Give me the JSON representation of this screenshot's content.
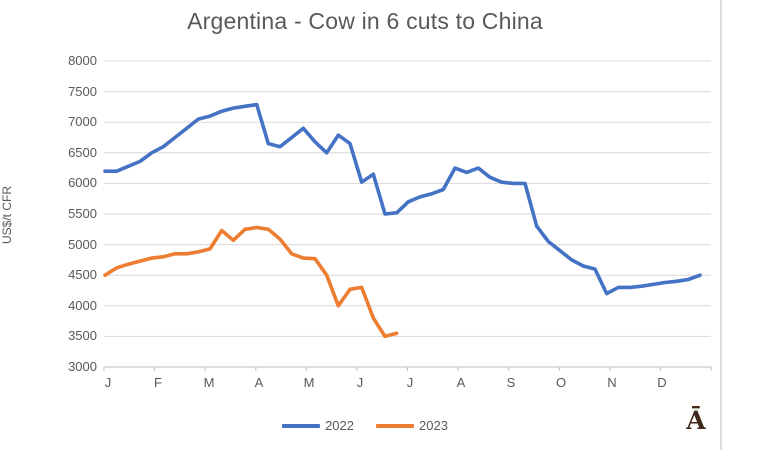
{
  "title": "Argentina - Cow in 6 cuts to China",
  "y_axis": {
    "title": "US$/t CFR",
    "min": 3000,
    "max": 8000,
    "step": 500
  },
  "x_axis": {
    "month_labels": [
      "J",
      "F",
      "M",
      "A",
      "M",
      "J",
      "J",
      "A",
      "S",
      "O",
      "N",
      "D"
    ]
  },
  "legend": [
    {
      "label": "2022",
      "color": "#4472C4"
    },
    {
      "label": "2023",
      "color": "#ED7D31"
    }
  ],
  "watermark": "Ā",
  "colors": {
    "series_2022": "#4472C4",
    "series_2023": "#ED7D31",
    "gridline": "#D9D9D9",
    "axis_line": "#BFBFBF",
    "text": "#595959",
    "watermark": "#40291A"
  },
  "chart_data": {
    "type": "line",
    "title": "Argentina - Cow in 6 cuts to China",
    "xlabel": "",
    "ylabel": "US$/t CFR",
    "ylim": [
      3000,
      8000
    ],
    "y_tick_step": 500,
    "grid": "horizontal",
    "legend_position": "bottom",
    "x_unit": "weekly points, Jan-Dec",
    "categories_months": [
      "J",
      "F",
      "M",
      "A",
      "M",
      "J",
      "J",
      "A",
      "S",
      "O",
      "N",
      "D"
    ],
    "series": [
      {
        "name": "2022",
        "color": "#4472C4",
        "values": [
          6200,
          6200,
          6280,
          6360,
          6500,
          6600,
          6750,
          6900,
          7050,
          7100,
          7180,
          7230,
          7260,
          7290,
          6650,
          6600,
          6750,
          6900,
          6680,
          6500,
          6790,
          6650,
          6020,
          6150,
          5500,
          5520,
          5700,
          5780,
          5830,
          5900,
          6250,
          6180,
          6250,
          6100,
          6020,
          6000,
          6000,
          5300,
          5050,
          4900,
          4750,
          4650,
          4600,
          4200,
          4300,
          4300,
          4320,
          4350,
          4380,
          4400,
          4430,
          4500
        ]
      },
      {
        "name": "2023",
        "color": "#ED7D31",
        "values": [
          4500,
          4620,
          4680,
          4730,
          4780,
          4800,
          4850,
          4850,
          4880,
          4930,
          5230,
          5070,
          5250,
          5280,
          5250,
          5090,
          4850,
          4780,
          4770,
          4500,
          4000,
          4270,
          4300,
          3800,
          3500,
          3550
        ]
      }
    ]
  }
}
